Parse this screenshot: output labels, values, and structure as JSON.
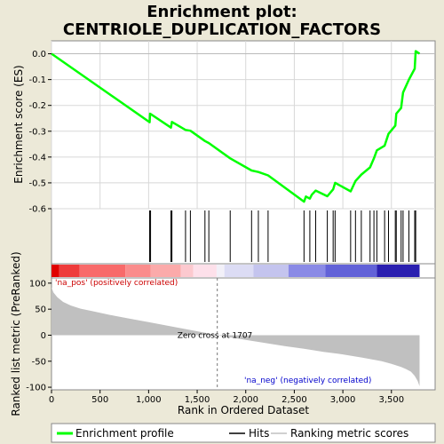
{
  "chart_data": {
    "type": "line",
    "title_line1": "Enrichment plot:",
    "title_line2": "CENTRIOLE_DUPLICATION_FACTORS",
    "es_ylabel": "Enrichment score (ES)",
    "rank_ylabel": "Ranked list metric (PreRanked)",
    "xlabel": "Rank in Ordered Dataset",
    "xlim": [
      0,
      3950
    ],
    "es_ylim": [
      -0.6,
      0.05
    ],
    "rank_ylim": [
      -105,
      110
    ],
    "x_ticks": [
      0,
      500,
      1000,
      1500,
      2000,
      2500,
      3000,
      3500
    ],
    "x_tick_labels": [
      "0",
      "500",
      "1,000",
      "1,500",
      "2,000",
      "2,500",
      "3,000",
      "3,500"
    ],
    "es_ticks": [
      0.0,
      -0.1,
      -0.2,
      -0.3,
      -0.4,
      -0.5,
      -0.6
    ],
    "es_tick_labels": [
      "0.0",
      "-0.1",
      "-0.2",
      "-0.3",
      "-0.4",
      "-0.5",
      "-0.6"
    ],
    "rank_ticks": [
      100,
      50,
      0,
      -50,
      -100
    ],
    "rank_tick_labels": [
      "100",
      "50",
      "0",
      "-50",
      "-100"
    ],
    "series": [
      {
        "name": "Enrichment profile",
        "color": "#00ff00",
        "x": [
          0,
          1010,
          1015,
          1230,
          1240,
          1380,
          1430,
          1580,
          1620,
          1840,
          2060,
          2130,
          2230,
          2600,
          2620,
          2660,
          2680,
          2720,
          2840,
          2900,
          2920,
          3080,
          3130,
          3190,
          3280,
          3320,
          3350,
          3430,
          3470,
          3540,
          3550,
          3600,
          3620,
          3680,
          3740,
          3750,
          3790
        ],
        "y": [
          0.0,
          -0.265,
          -0.232,
          -0.286,
          -0.264,
          -0.295,
          -0.298,
          -0.338,
          -0.346,
          -0.405,
          -0.452,
          -0.458,
          -0.471,
          -0.573,
          -0.553,
          -0.561,
          -0.546,
          -0.53,
          -0.552,
          -0.525,
          -0.5,
          -0.533,
          -0.493,
          -0.468,
          -0.44,
          -0.405,
          -0.374,
          -0.356,
          -0.31,
          -0.278,
          -0.232,
          -0.21,
          -0.15,
          -0.1,
          -0.058,
          0.01,
          0.0
        ]
      }
    ],
    "hits": [
      1010,
      1020,
      1230,
      1240,
      1380,
      1430,
      1580,
      1620,
      1840,
      2060,
      2130,
      2230,
      2600,
      2660,
      2720,
      2840,
      2900,
      2920,
      3080,
      3130,
      3190,
      3280,
      3320,
      3350,
      3430,
      3470,
      3540,
      3550,
      3600,
      3620,
      3680,
      3740,
      3750
    ],
    "ranking_metric": {
      "x": [
        0,
        20,
        60,
        120,
        200,
        300,
        400,
        500,
        600,
        800,
        1000,
        1200,
        1400,
        1600,
        1707,
        1800,
        2000,
        2200,
        2400,
        2600,
        2800,
        3000,
        3200,
        3400,
        3500,
        3600,
        3650,
        3700,
        3740,
        3770,
        3790
      ],
      "y": [
        92,
        82,
        73,
        64,
        57,
        51,
        47,
        43,
        39,
        32,
        25,
        18,
        11,
        4,
        0,
        -3,
        -9,
        -15,
        -21,
        -26,
        -32,
        -37,
        -43,
        -50,
        -55,
        -61,
        -65,
        -70,
        -78,
        -88,
        -98
      ]
    },
    "zero_cross_rank": 1707,
    "zero_cross_label": "Zero cross at 1707",
    "pos_label": "'na_pos' (positively correlated)",
    "neg_label": "'na_neg' (negatively correlated)",
    "legend": [
      "Enrichment profile",
      "Hits",
      "Ranking metric scores"
    ],
    "colors": {
      "es_line": "#00ff00",
      "hits": "#000000",
      "metric_fill": "#c0c0c0",
      "pos_text": "#cc0000",
      "neg_text": "#0000cc"
    }
  }
}
